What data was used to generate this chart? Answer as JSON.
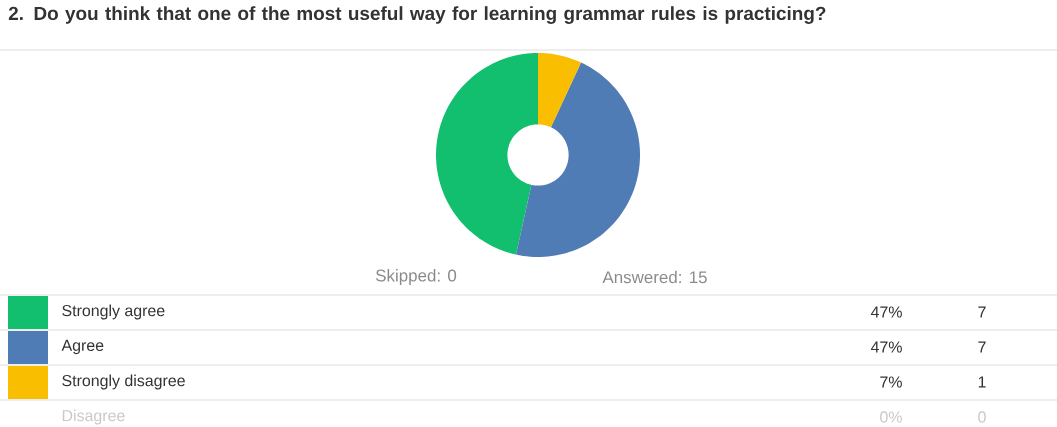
{
  "chart_data": {
    "type": "donut",
    "title": "2. Do you think that one of the most useful way for learning grammar rules is practicing?",
    "categories": [
      "Strongly agree",
      "Agree",
      "Strongly disagree",
      "Disagree"
    ],
    "values": [
      47,
      47,
      7,
      0
    ],
    "colors": [
      "#12bf6e",
      "#507cb6",
      "#f9be00",
      null
    ],
    "value_labels": [
      "47%",
      "47%",
      "7%",
      "0%"
    ],
    "legend": "bottom",
    "annotations": [
      "Skipped: 0",
      "Answered: 15",
      "7",
      "7",
      "1",
      "0"
    ]
  }
}
